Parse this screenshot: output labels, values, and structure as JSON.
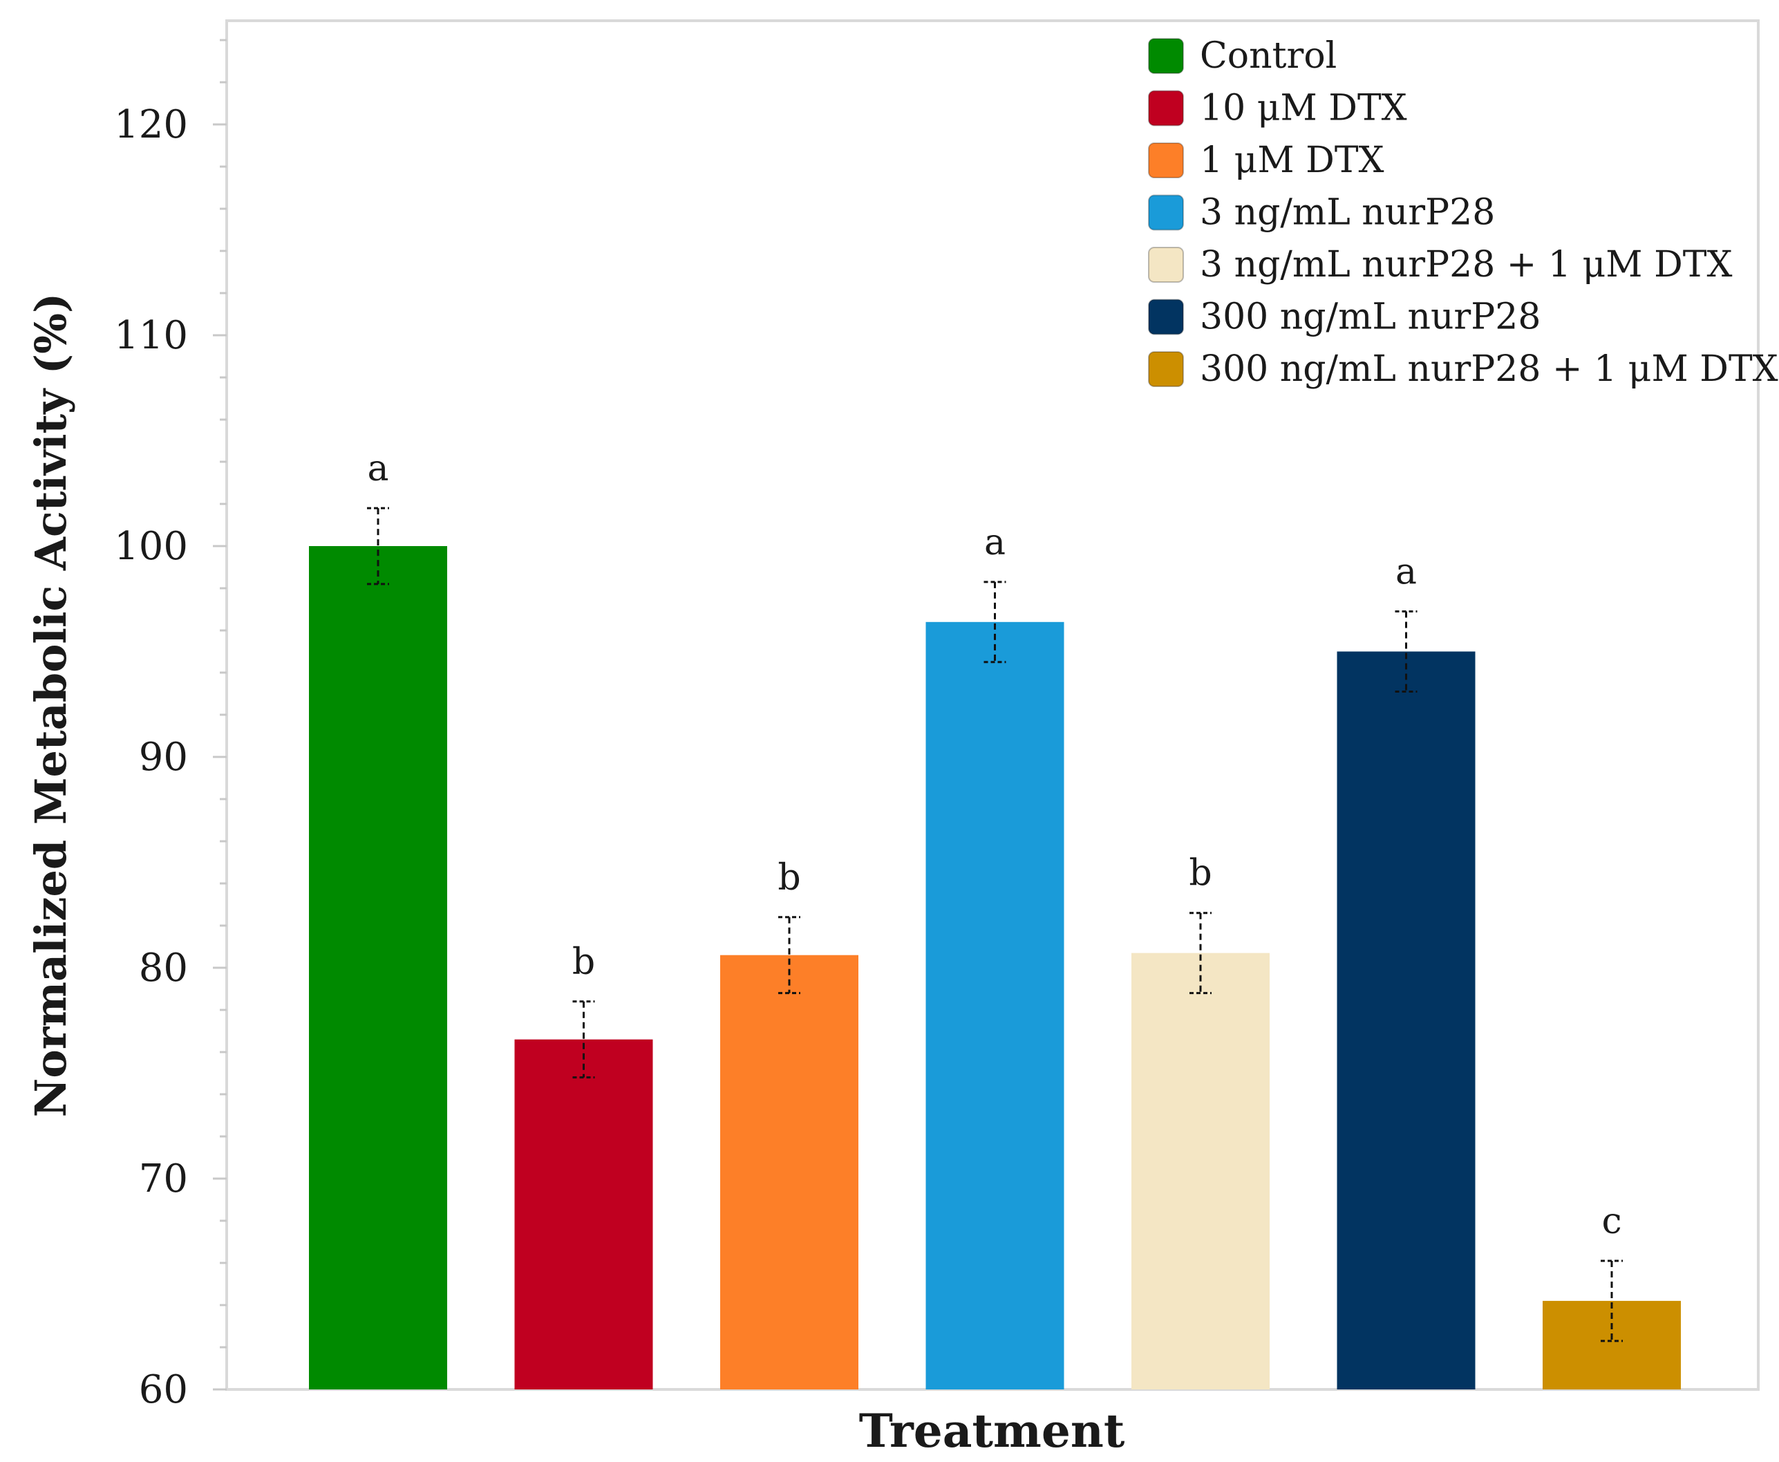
{
  "chart_data": {
    "type": "bar",
    "title": "",
    "xlabel": "Treatment",
    "ylabel": "Normalized Metabolic Activity (%)",
    "ylim": [
      60,
      125
    ],
    "yticks": [
      60,
      70,
      80,
      90,
      100,
      110,
      120
    ],
    "grid": false,
    "legend_position": "top-right",
    "series": [
      {
        "name": "Control",
        "value": 100.0,
        "error": 1.8,
        "label": "a",
        "color": "#008a00"
      },
      {
        "name": "10 μM DTX",
        "value": 76.6,
        "error": 1.8,
        "label": "b",
        "color": "#c00020"
      },
      {
        "name": "1 μM DTX",
        "value": 80.6,
        "error": 1.8,
        "label": "b",
        "color": "#fd7f28"
      },
      {
        "name": "3 ng/mL nurP28",
        "value": 96.4,
        "error": 1.9,
        "label": "a",
        "color": "#1a9bd9"
      },
      {
        "name": "3 ng/mL nurP28 + 1 μM DTX",
        "value": 80.7,
        "error": 1.9,
        "label": "b",
        "color": "#f4e6c4"
      },
      {
        "name": "300 ng/mL nurP28",
        "value": 95.0,
        "error": 1.9,
        "label": "a",
        "color": "#023461"
      },
      {
        "name": "300 ng/mL nurP28 + 1 μM DTX",
        "value": 64.2,
        "error": 1.9,
        "label": "c",
        "color": "#cc8f00"
      }
    ]
  }
}
